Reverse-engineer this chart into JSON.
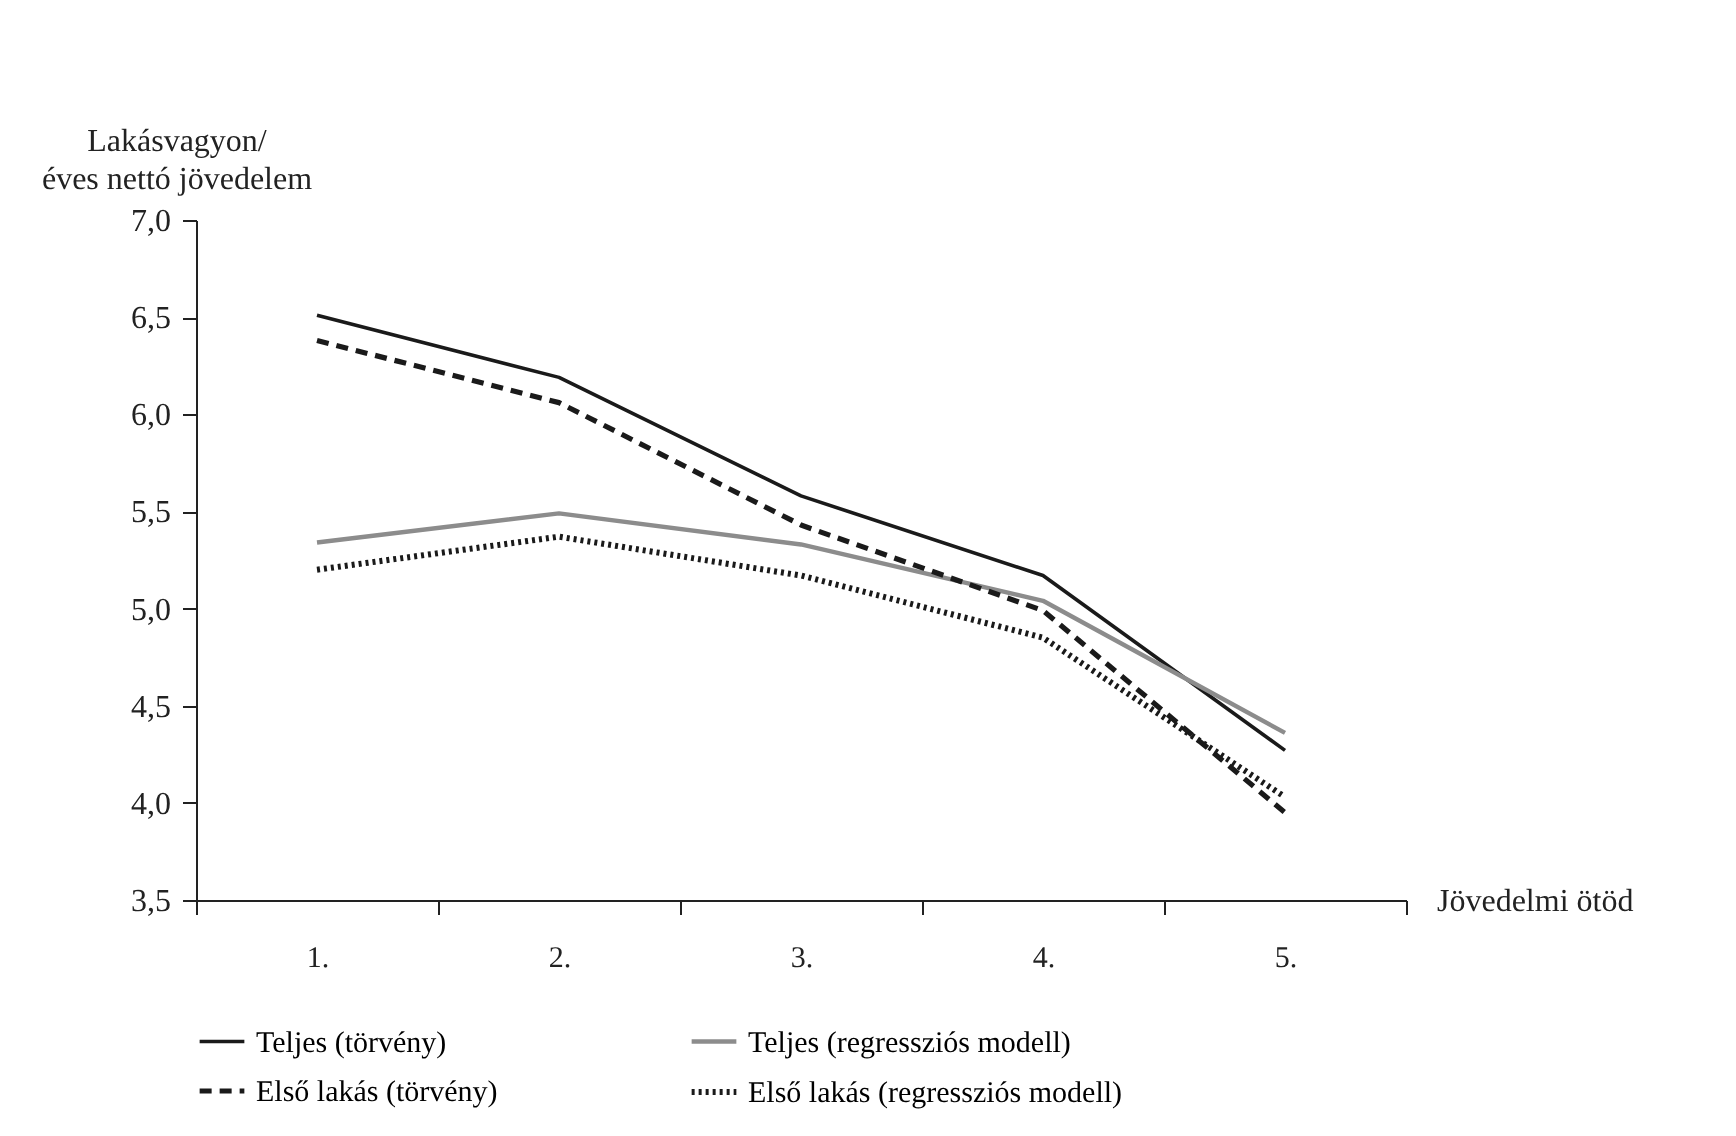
{
  "chart_data": {
    "type": "line",
    "xlabel": "Jövedelmi ötöd",
    "ylabel": "Lakásvagyon/\néves nettó jövedelem",
    "categories": [
      "1.",
      "2.",
      "3.",
      "4.",
      "5."
    ],
    "series": [
      {
        "name": "Teljes (törvény)",
        "color": "#1a1a1a",
        "line_style": "solid",
        "values": [
          6.51,
          6.19,
          5.58,
          5.17,
          4.27
        ]
      },
      {
        "name": "Teljes (regressziós modell)",
        "color": "#8c8c8c",
        "line_style": "solid",
        "values": [
          5.34,
          5.49,
          5.33,
          5.04,
          4.36
        ]
      },
      {
        "name": "Első lakás (törvény)",
        "color": "#1a1a1a",
        "line_style": "dashed",
        "values": [
          6.38,
          6.06,
          5.43,
          4.99,
          3.95
        ]
      },
      {
        "name": "Első lakás (regressziós modell)",
        "color": "#1a1a1a",
        "line_style": "dotted",
        "values": [
          5.2,
          5.37,
          5.17,
          4.85,
          4.03
        ]
      }
    ],
    "ylim": [
      3.5,
      7.0
    ],
    "yticks": [
      {
        "value": 3.5,
        "label": "3,5"
      },
      {
        "value": 4.0,
        "label": "4,0"
      },
      {
        "value": 4.5,
        "label": "4,5"
      },
      {
        "value": 5.0,
        "label": "5,0"
      },
      {
        "value": 5.5,
        "label": "5,5"
      },
      {
        "value": 6.0,
        "label": "6,0"
      },
      {
        "value": 6.5,
        "label": "6,5"
      },
      {
        "value": 7.0,
        "label": "7,0"
      }
    ],
    "grid": false,
    "legend": "bottom",
    "marker": "none"
  }
}
